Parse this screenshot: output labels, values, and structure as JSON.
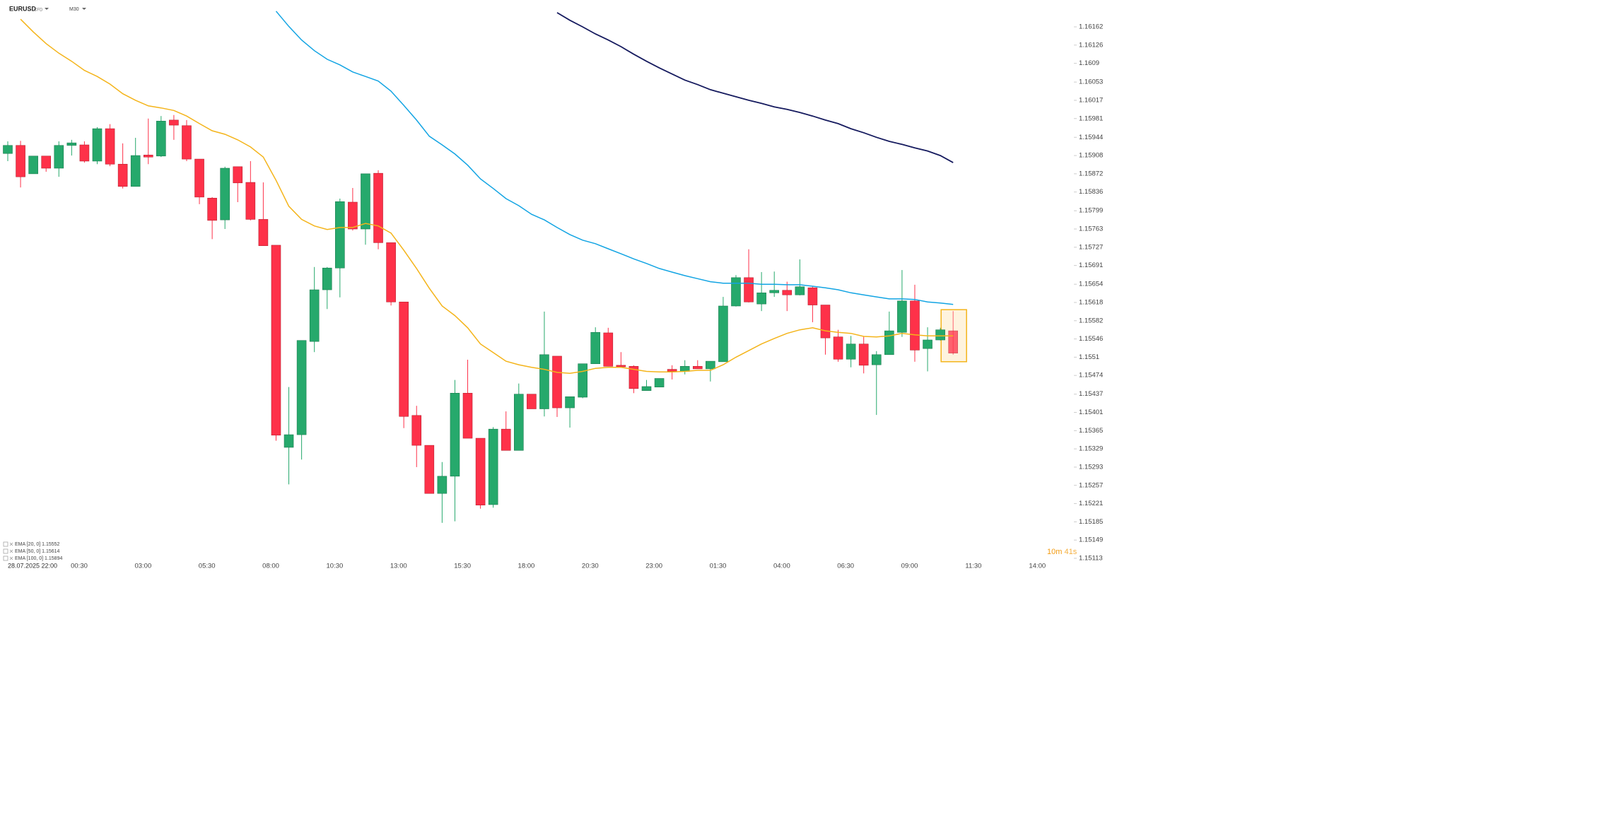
{
  "header": {
    "symbol": "EURUSD",
    "symbol_type": "CFD",
    "timeframe": "M30"
  },
  "chart_data": {
    "type": "candlestick",
    "up_color": "#26a96c",
    "down_color": "#fe3149",
    "candles": {
      "open": [
        1.15912,
        1.15928,
        1.15872,
        1.15907,
        1.15883,
        1.15928,
        1.15929,
        1.15897,
        1.15961,
        1.15891,
        1.15847,
        1.15909,
        1.15907,
        1.15978,
        1.15967,
        1.15901,
        1.15824,
        1.15781,
        1.15886,
        1.15855,
        1.15782,
        1.15731,
        1.15332,
        1.15357,
        1.15541,
        1.15643,
        1.15686,
        1.15816,
        1.15763,
        1.15873,
        1.15736,
        1.15619,
        1.15395,
        1.15336,
        1.15241,
        1.15275,
        1.15439,
        1.1535,
        1.15219,
        1.15368,
        1.15326,
        1.15437,
        1.15408,
        1.15512,
        1.1541,
        1.15431,
        1.15497,
        1.15558,
        1.15494,
        1.15492,
        1.15444,
        1.15451,
        1.15486,
        1.15482,
        1.15492,
        1.15487,
        1.15501,
        1.15611,
        1.15667,
        1.15615,
        1.15637,
        1.15642,
        1.15633,
        1.15647,
        1.15613,
        1.1555,
        1.15506,
        1.15536,
        1.15495,
        1.15515,
        1.15559,
        1.15621,
        1.15527,
        1.15544,
        1.15562
      ],
      "high": [
        1.15936,
        1.15937,
        1.15907,
        1.15907,
        1.15936,
        1.15939,
        1.15936,
        1.15964,
        1.1597,
        1.15932,
        1.15943,
        1.15981,
        1.15986,
        1.15988,
        1.15978,
        1.15901,
        1.15826,
        1.15886,
        1.15886,
        1.15897,
        1.15855,
        1.15731,
        1.15451,
        1.15543,
        1.15688,
        1.15688,
        1.15823,
        1.15844,
        1.15872,
        1.15879,
        1.15736,
        1.15619,
        1.15414,
        1.15336,
        1.15303,
        1.15465,
        1.15505,
        1.1535,
        1.15372,
        1.15403,
        1.15458,
        1.15437,
        1.156,
        1.15512,
        1.15432,
        1.15497,
        1.15569,
        1.15568,
        1.1552,
        1.15494,
        1.15465,
        1.15468,
        1.15494,
        1.15504,
        1.15504,
        1.15502,
        1.15629,
        1.15672,
        1.15723,
        1.15678,
        1.15679,
        1.15659,
        1.15703,
        1.1565,
        1.15613,
        1.15564,
        1.15552,
        1.15551,
        1.15522,
        1.156,
        1.15682,
        1.15653,
        1.15569,
        1.15568,
        1.15601
      ],
      "low": [
        1.15897,
        1.15845,
        1.15872,
        1.15876,
        1.15866,
        1.15908,
        1.15894,
        1.15891,
        1.15887,
        1.15843,
        1.15847,
        1.15891,
        1.15905,
        1.15939,
        1.15897,
        1.15812,
        1.15743,
        1.15763,
        1.15816,
        1.1578,
        1.1573,
        1.15345,
        1.15259,
        1.15308,
        1.1552,
        1.15605,
        1.15628,
        1.1576,
        1.15732,
        1.15723,
        1.15612,
        1.1537,
        1.15293,
        1.15241,
        1.15183,
        1.15186,
        1.1535,
        1.15211,
        1.15213,
        1.15326,
        1.15326,
        1.15408,
        1.15393,
        1.15392,
        1.15371,
        1.15429,
        1.15497,
        1.15492,
        1.1549,
        1.15439,
        1.15444,
        1.15451,
        1.15466,
        1.15476,
        1.15487,
        1.15462,
        1.15501,
        1.1561,
        1.15618,
        1.15601,
        1.15629,
        1.15601,
        1.15632,
        1.15579,
        1.15515,
        1.15501,
        1.1549,
        1.15478,
        1.15396,
        1.15515,
        1.1555,
        1.15501,
        1.15482,
        1.15543,
        1.15515
      ],
      "close": [
        1.15928,
        1.15866,
        1.15907,
        1.15883,
        1.15928,
        1.15933,
        1.15897,
        1.15961,
        1.15891,
        1.15847,
        1.15908,
        1.15905,
        1.15976,
        1.15968,
        1.15901,
        1.15826,
        1.1578,
        1.15883,
        1.15854,
        1.15782,
        1.1573,
        1.15356,
        1.15357,
        1.15543,
        1.15643,
        1.15686,
        1.15817,
        1.15763,
        1.15872,
        1.15736,
        1.15619,
        1.15393,
        1.15336,
        1.15241,
        1.15275,
        1.15439,
        1.1535,
        1.15218,
        1.15368,
        1.15326,
        1.15437,
        1.15408,
        1.15515,
        1.1541,
        1.15432,
        1.15497,
        1.15559,
        1.15492,
        1.15491,
        1.15448,
        1.15452,
        1.15468,
        1.15482,
        1.15492,
        1.15487,
        1.15502,
        1.15611,
        1.15667,
        1.15619,
        1.15637,
        1.15642,
        1.15633,
        1.15649,
        1.15613,
        1.15548,
        1.15506,
        1.15536,
        1.15494,
        1.15515,
        1.15562,
        1.15621,
        1.15524,
        1.15544,
        1.15564,
        1.15518
      ]
    },
    "series": [
      {
        "name": "EMA [20, 0]",
        "color": "#f4b41a",
        "last_value": 1.15552,
        "values": [
          null,
          1.16177,
          1.16152,
          1.16129,
          1.1611,
          1.16094,
          1.16076,
          1.16064,
          1.16049,
          1.1603,
          1.16017,
          1.16006,
          1.16002,
          1.15997,
          1.15986,
          1.15971,
          1.15957,
          1.1595,
          1.15939,
          1.15925,
          1.15905,
          1.15859,
          1.15808,
          1.15782,
          1.15769,
          1.15762,
          1.15766,
          1.15766,
          1.15774,
          1.15769,
          1.15755,
          1.15721,
          1.15685,
          1.15646,
          1.15611,
          1.15592,
          1.15568,
          1.15536,
          1.15519,
          1.15502,
          1.15495,
          1.1549,
          1.15486,
          1.1548,
          1.15478,
          1.15482,
          1.15488,
          1.1549,
          1.1549,
          1.15486,
          1.15482,
          1.15481,
          1.15481,
          1.15482,
          1.15484,
          1.15484,
          1.15495,
          1.1551,
          1.15523,
          1.15536,
          1.15547,
          1.15557,
          1.15564,
          1.15568,
          1.15562,
          1.15559,
          1.15557,
          1.15551,
          1.1555,
          1.15552,
          1.15557,
          1.15554,
          1.15552,
          1.15552,
          1.15552
        ]
      },
      {
        "name": "EMA [50, 0]",
        "color": "#12a4e3",
        "last_value": 1.15614,
        "values": [
          null,
          null,
          null,
          null,
          null,
          null,
          null,
          null,
          null,
          null,
          null,
          null,
          null,
          null,
          null,
          null,
          null,
          null,
          null,
          null,
          null,
          1.16193,
          1.16163,
          1.16136,
          1.16115,
          1.16098,
          1.16087,
          1.16073,
          1.16064,
          1.16055,
          1.16035,
          1.16007,
          1.15978,
          1.15946,
          1.15929,
          1.15911,
          1.15889,
          1.15862,
          1.15843,
          1.15823,
          1.15809,
          1.15792,
          1.15781,
          1.15766,
          1.15752,
          1.15741,
          1.15734,
          1.15724,
          1.15714,
          1.15704,
          1.15695,
          1.15685,
          1.15678,
          1.15671,
          1.15665,
          1.15659,
          1.15656,
          1.15656,
          1.15656,
          1.15654,
          1.15654,
          1.15653,
          1.15653,
          1.1565,
          1.15647,
          1.15643,
          1.15637,
          1.15633,
          1.15629,
          1.15625,
          1.15625,
          1.15624,
          1.15619,
          1.15617,
          1.15614
        ]
      },
      {
        "name": "EMA [100, 0]",
        "color": "#151a5e",
        "last_value": 1.15894,
        "values": [
          null,
          null,
          null,
          null,
          null,
          null,
          null,
          null,
          null,
          null,
          null,
          null,
          null,
          null,
          null,
          null,
          null,
          null,
          null,
          null,
          null,
          null,
          null,
          null,
          null,
          null,
          null,
          null,
          null,
          null,
          null,
          null,
          null,
          null,
          null,
          null,
          null,
          null,
          null,
          null,
          null,
          null,
          null,
          1.1619,
          1.16175,
          1.16162,
          1.16148,
          1.16136,
          1.16123,
          1.16108,
          1.16094,
          1.16081,
          1.16069,
          1.16057,
          1.16048,
          1.16038,
          1.16031,
          1.16024,
          1.16017,
          1.16011,
          1.16004,
          1.15999,
          1.15993,
          1.15986,
          1.15978,
          1.15971,
          1.15961,
          1.15953,
          1.15944,
          1.15936,
          1.1593,
          1.15923,
          1.15917,
          1.15908,
          1.15894
        ]
      }
    ],
    "ylim": [
      1.15106,
      1.16215
    ],
    "yticks": [
      1.16162,
      1.16126,
      1.1609,
      1.16053,
      1.16017,
      1.15981,
      1.15944,
      1.15908,
      1.15872,
      1.15836,
      1.15799,
      1.15763,
      1.15727,
      1.15691,
      1.15654,
      1.15618,
      1.15582,
      1.15546,
      1.1551,
      1.15474,
      1.15437,
      1.15401,
      1.15365,
      1.15329,
      1.15293,
      1.15257,
      1.15221,
      1.15185,
      1.15149,
      1.15113
    ],
    "x_start_label": "28.07.2025 22:00",
    "x_labels": [
      "00:30",
      "03:00",
      "05:30",
      "08:00",
      "10:30",
      "13:00",
      "15:30",
      "18:00",
      "20:30",
      "23:00",
      "01:30",
      "04:00",
      "06:30",
      "09:00",
      "11:30",
      "14:00"
    ]
  },
  "timer": {
    "minutes": "10m",
    "seconds": "41s"
  }
}
